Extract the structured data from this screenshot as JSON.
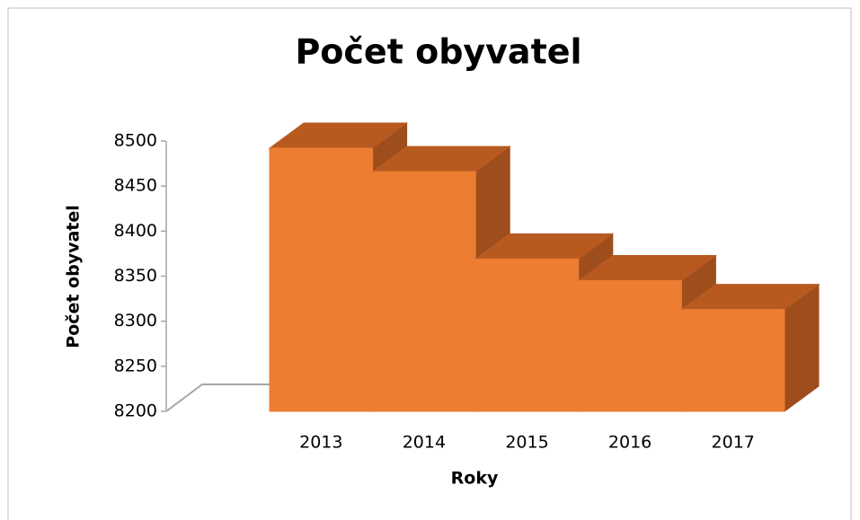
{
  "chart_data": {
    "type": "bar3d",
    "title": "Počet obyvatel",
    "categories": [
      "2013",
      "2014",
      "2015",
      "2016",
      "2017"
    ],
    "values": [
      8492,
      8466,
      8369,
      8345,
      8313
    ],
    "color": "#ed7d31",
    "x_label": "Roky",
    "y_label": "Počet obyvatel",
    "ylim": [
      8200,
      8500
    ],
    "yticks": [
      8200,
      8250,
      8300,
      8350,
      8400,
      8450,
      8500
    ]
  }
}
